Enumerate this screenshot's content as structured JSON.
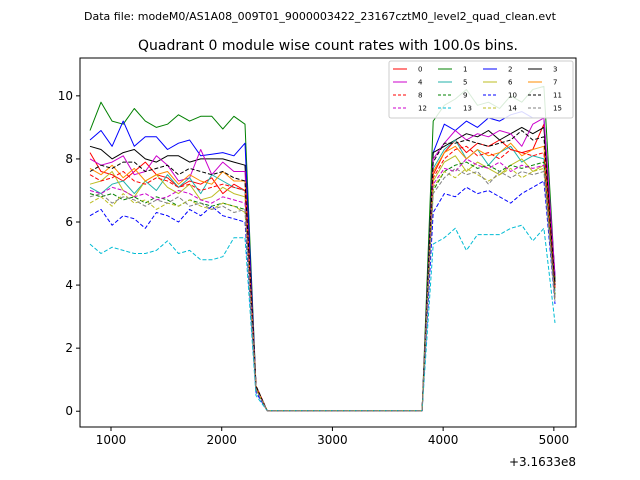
{
  "figure": {
    "suptitle": "Data file: modeM0/AS1A08_009T01_9000003422_23167cztM0_level2_quad_clean.evt"
  },
  "chart_data": {
    "type": "line",
    "title": "Quadrant 0 module wise count rates with 100.0s bins.",
    "xlabel": "",
    "ylabel": "",
    "x_offset_label": "+3.1633e8",
    "xlim": [
      720,
      5200
    ],
    "ylim": [
      -0.5,
      11.2
    ],
    "xticks": [
      1000,
      2000,
      3000,
      4000,
      5000
    ],
    "xtick_labels": [
      "1000",
      "2000",
      "3000",
      "4000",
      "5000"
    ],
    "yticks": [
      0,
      2,
      4,
      6,
      8,
      10
    ],
    "ytick_labels": [
      "0",
      "2",
      "4",
      "6",
      "8",
      "10"
    ],
    "grid": false,
    "legend_position": "upper right",
    "legend_columns": 4,
    "x": [
      810,
      910,
      1010,
      1110,
      1210,
      1310,
      1410,
      1510,
      1610,
      1710,
      1810,
      1910,
      2010,
      2110,
      2210,
      2310,
      2410,
      2510,
      2610,
      2710,
      2810,
      2910,
      3010,
      3110,
      3210,
      3310,
      3410,
      3510,
      3610,
      3710,
      3810,
      3910,
      4010,
      4110,
      4210,
      4310,
      4410,
      4510,
      4610,
      4710,
      4810,
      4910,
      5010
    ],
    "series": [
      {
        "name": "0",
        "color": "#ff0000",
        "dash": false,
        "values": [
          8.2,
          7.6,
          7.5,
          7.3,
          7.6,
          7.9,
          7.5,
          7.4,
          7.1,
          7.3,
          7.2,
          7.4,
          6.9,
          7.2,
          7.0,
          0.8,
          0.02,
          0.02,
          0.02,
          0.02,
          0.02,
          0.02,
          0.02,
          0.02,
          0.02,
          0.02,
          0.02,
          0.02,
          0.02,
          0.02,
          0.02,
          7.5,
          8.2,
          8.6,
          8.2,
          8.5,
          8.4,
          8.6,
          8.3,
          8.2,
          8.3,
          9.1,
          4.0
        ]
      },
      {
        "name": "1",
        "color": "#008000",
        "dash": false,
        "values": [
          8.9,
          9.8,
          9.2,
          9.1,
          9.6,
          9.2,
          9.0,
          9.1,
          9.4,
          9.2,
          9.35,
          9.35,
          8.95,
          9.35,
          9.1,
          0.8,
          0.02,
          0.02,
          0.02,
          0.02,
          0.02,
          0.02,
          0.02,
          0.02,
          0.02,
          0.02,
          0.02,
          0.02,
          0.02,
          0.02,
          0.02,
          9.2,
          9.7,
          9.9,
          10.2,
          9.7,
          9.8,
          9.6,
          10.0,
          9.8,
          10.2,
          10.3,
          4.2
        ]
      },
      {
        "name": "2",
        "color": "#0000ff",
        "dash": false,
        "values": [
          8.6,
          8.9,
          8.4,
          9.2,
          8.4,
          8.7,
          8.7,
          8.3,
          8.5,
          8.6,
          8.1,
          8.15,
          8.2,
          8.1,
          8.5,
          0.8,
          0.02,
          0.02,
          0.02,
          0.02,
          0.02,
          0.02,
          0.02,
          0.02,
          0.02,
          0.02,
          0.02,
          0.02,
          0.02,
          0.02,
          0.02,
          8.2,
          9.1,
          8.9,
          9.2,
          9.0,
          9.3,
          9.2,
          9.4,
          9.5,
          9.3,
          9.3,
          4.3
        ]
      },
      {
        "name": "3",
        "color": "#000000",
        "dash": false,
        "values": [
          8.4,
          8.3,
          8.0,
          8.2,
          8.3,
          8.0,
          7.9,
          8.1,
          8.1,
          7.9,
          8.0,
          8.0,
          8.0,
          7.9,
          7.8,
          0.8,
          0.02,
          0.02,
          0.02,
          0.02,
          0.02,
          0.02,
          0.02,
          0.02,
          0.02,
          0.02,
          0.02,
          0.02,
          0.02,
          0.02,
          0.02,
          8.2,
          8.4,
          8.6,
          8.8,
          8.7,
          8.9,
          8.6,
          8.8,
          9.0,
          8.8,
          9.0,
          4.1
        ]
      },
      {
        "name": "4",
        "color": "#cc00cc",
        "dash": false,
        "values": [
          8.0,
          7.8,
          7.9,
          8.1,
          7.5,
          7.6,
          8.1,
          7.8,
          7.3,
          7.4,
          8.3,
          7.5,
          7.9,
          7.6,
          7.6,
          0.8,
          0.02,
          0.02,
          0.02,
          0.02,
          0.02,
          0.02,
          0.02,
          0.02,
          0.02,
          0.02,
          0.02,
          0.02,
          0.02,
          0.02,
          0.02,
          8.0,
          8.5,
          8.9,
          8.6,
          8.8,
          8.7,
          8.9,
          8.8,
          8.4,
          9.1,
          9.3,
          4.3
        ]
      },
      {
        "name": "5",
        "color": "#20b2aa",
        "dash": false,
        "values": [
          7.1,
          6.9,
          7.2,
          7.3,
          6.9,
          7.3,
          7.0,
          7.5,
          7.1,
          7.4,
          6.9,
          7.5,
          7.3,
          7.1,
          7.0,
          0.8,
          0.02,
          0.02,
          0.02,
          0.02,
          0.02,
          0.02,
          0.02,
          0.02,
          0.02,
          0.02,
          0.02,
          0.02,
          0.02,
          0.02,
          0.02,
          7.7,
          8.3,
          8.6,
          8.0,
          8.3,
          7.8,
          8.2,
          8.4,
          7.9,
          8.1,
          8.0,
          3.8
        ]
      },
      {
        "name": "6",
        "color": "#bcbd22",
        "dash": false,
        "values": [
          7.2,
          7.3,
          7.6,
          7.0,
          6.8,
          7.3,
          7.5,
          7.1,
          6.9,
          7.2,
          6.7,
          6.8,
          7.1,
          6.9,
          6.8,
          0.7,
          0.02,
          0.02,
          0.02,
          0.02,
          0.02,
          0.02,
          0.02,
          0.02,
          0.02,
          0.02,
          0.02,
          0.02,
          0.02,
          0.02,
          0.02,
          7.3,
          7.9,
          8.1,
          7.6,
          7.9,
          7.7,
          7.5,
          7.8,
          8.0,
          7.6,
          7.8,
          3.6
        ]
      },
      {
        "name": "7",
        "color": "#ff8c00",
        "dash": false,
        "values": [
          7.7,
          7.5,
          7.8,
          7.4,
          7.7,
          7.3,
          7.5,
          7.6,
          7.2,
          7.5,
          7.3,
          7.2,
          7.6,
          7.3,
          7.3,
          0.8,
          0.02,
          0.02,
          0.02,
          0.02,
          0.02,
          0.02,
          0.02,
          0.02,
          0.02,
          0.02,
          0.02,
          0.02,
          0.02,
          0.02,
          0.02,
          7.6,
          8.2,
          8.4,
          8.0,
          8.3,
          8.1,
          8.2,
          8.5,
          8.1,
          8.3,
          8.4,
          3.9
        ]
      },
      {
        "name": "8",
        "color": "#ff0000",
        "dash": true,
        "values": [
          7.5,
          7.3,
          7.4,
          7.6,
          7.3,
          7.2,
          7.4,
          7.3,
          7.1,
          7.2,
          7.0,
          7.1,
          7.2,
          7.1,
          7.0,
          0.8,
          0.02,
          0.02,
          0.02,
          0.02,
          0.02,
          0.02,
          0.02,
          0.02,
          0.02,
          0.02,
          0.02,
          0.02,
          0.02,
          0.02,
          0.02,
          7.4,
          8.0,
          8.3,
          8.4,
          8.1,
          8.2,
          8.0,
          8.3,
          8.2,
          8.1,
          8.2,
          3.9
        ]
      },
      {
        "name": "9",
        "color": "#008000",
        "dash": true,
        "values": [
          6.9,
          6.8,
          6.9,
          6.7,
          6.8,
          6.6,
          6.8,
          6.7,
          6.5,
          6.7,
          6.6,
          6.5,
          6.6,
          6.5,
          6.4,
          0.7,
          0.02,
          0.02,
          0.02,
          0.02,
          0.02,
          0.02,
          0.02,
          0.02,
          0.02,
          0.02,
          0.02,
          0.02,
          0.02,
          0.02,
          0.02,
          7.0,
          7.6,
          7.8,
          7.9,
          7.7,
          7.8,
          7.6,
          7.8,
          7.7,
          7.8,
          7.9,
          3.7
        ]
      },
      {
        "name": "10",
        "color": "#0000ff",
        "dash": true,
        "values": [
          6.2,
          6.4,
          5.9,
          6.2,
          6.1,
          5.8,
          6.3,
          6.2,
          6.0,
          6.4,
          6.2,
          6.5,
          6.2,
          6.1,
          6.0,
          0.6,
          0.02,
          0.02,
          0.02,
          0.02,
          0.02,
          0.02,
          0.02,
          0.02,
          0.02,
          0.02,
          0.02,
          0.02,
          0.02,
          0.02,
          0.02,
          6.3,
          6.9,
          6.8,
          7.1,
          6.9,
          7.0,
          6.8,
          6.6,
          6.9,
          7.1,
          7.3,
          3.4
        ]
      },
      {
        "name": "11",
        "color": "#000000",
        "dash": true,
        "values": [
          7.6,
          7.8,
          7.7,
          7.9,
          7.9,
          7.6,
          7.7,
          7.8,
          7.5,
          7.7,
          7.6,
          7.5,
          7.6,
          7.4,
          7.3,
          0.8,
          0.02,
          0.02,
          0.02,
          0.02,
          0.02,
          0.02,
          0.02,
          0.02,
          0.02,
          0.02,
          0.02,
          0.02,
          0.02,
          0.02,
          0.02,
          7.9,
          8.5,
          8.5,
          8.6,
          8.5,
          8.4,
          8.5,
          8.6,
          8.9,
          8.6,
          8.7,
          4.0
        ]
      },
      {
        "name": "12",
        "color": "#cc00cc",
        "dash": true,
        "values": [
          7.0,
          6.9,
          7.1,
          7.0,
          6.8,
          6.9,
          6.7,
          6.8,
          7.0,
          6.9,
          6.7,
          6.6,
          6.8,
          6.7,
          6.6,
          0.7,
          0.02,
          0.02,
          0.02,
          0.02,
          0.02,
          0.02,
          0.02,
          0.02,
          0.02,
          0.02,
          0.02,
          0.02,
          0.02,
          0.02,
          0.02,
          7.2,
          7.7,
          7.6,
          8.0,
          7.8,
          7.7,
          7.9,
          7.6,
          7.8,
          7.7,
          7.8,
          3.6
        ]
      },
      {
        "name": "13",
        "color": "#00bcd4",
        "dash": true,
        "values": [
          5.3,
          5.0,
          5.2,
          5.1,
          5.0,
          5.0,
          5.1,
          5.4,
          5.0,
          5.1,
          4.8,
          4.8,
          4.9,
          5.5,
          5.5,
          0.5,
          0.02,
          0.02,
          0.02,
          0.02,
          0.02,
          0.02,
          0.02,
          0.02,
          0.02,
          0.02,
          0.02,
          0.02,
          0.02,
          0.02,
          0.02,
          5.3,
          5.5,
          5.8,
          5.1,
          5.6,
          5.6,
          5.6,
          5.8,
          5.9,
          5.4,
          5.8,
          2.8
        ]
      },
      {
        "name": "14",
        "color": "#bcbd22",
        "dash": true,
        "values": [
          6.6,
          6.8,
          6.5,
          6.9,
          6.6,
          6.7,
          6.4,
          6.6,
          6.5,
          6.7,
          6.5,
          6.4,
          6.6,
          6.5,
          6.3,
          0.7,
          0.02,
          0.02,
          0.02,
          0.02,
          0.02,
          0.02,
          0.02,
          0.02,
          0.02,
          0.02,
          0.02,
          0.02,
          0.02,
          0.02,
          0.02,
          7.1,
          7.6,
          7.4,
          7.7,
          7.5,
          7.3,
          7.5,
          7.7,
          7.4,
          7.6,
          7.7,
          3.5
        ]
      },
      {
        "name": "15",
        "color": "#808080",
        "dash": true,
        "values": [
          6.8,
          6.9,
          6.6,
          6.8,
          6.7,
          6.5,
          6.7,
          6.6,
          6.8,
          6.5,
          6.6,
          6.4,
          6.5,
          6.3,
          6.4,
          0.7,
          0.02,
          0.02,
          0.02,
          0.02,
          0.02,
          0.02,
          0.02,
          0.02,
          0.02,
          0.02,
          0.02,
          0.02,
          0.02,
          0.02,
          0.02,
          6.9,
          7.4,
          7.7,
          7.5,
          7.6,
          7.2,
          7.6,
          7.4,
          7.6,
          7.5,
          7.6,
          3.5
        ]
      }
    ]
  }
}
